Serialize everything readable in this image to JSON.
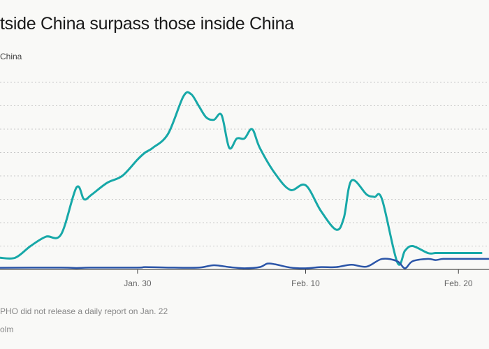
{
  "chart_data": {
    "type": "line",
    "title": "tside China surpass those inside China",
    "legend_label": "China",
    "x_ticks": [
      {
        "label": "Jan. 30",
        "x": 11
      },
      {
        "label": "Feb. 10",
        "x": 22
      },
      {
        "label": "Feb. 20",
        "x": 32
      }
    ],
    "x_range": [
      2,
      34
    ],
    "y_range": [
      0,
      8
    ],
    "grid": true,
    "series": [
      {
        "color": "#17a8a8",
        "x": [
          2,
          3,
          4,
          5,
          6,
          7,
          7.5,
          8,
          9,
          10,
          11,
          11.5,
          12,
          13,
          14,
          14.5,
          15,
          15.5,
          16,
          16.5,
          17,
          17.5,
          18,
          18.5,
          19,
          20,
          21,
          22,
          23,
          24,
          24.5,
          25,
          26,
          26.5,
          27,
          28,
          28.5,
          29,
          30,
          30.5,
          31,
          31.3,
          32,
          33,
          33.5
        ],
        "y": [
          0.5,
          0.5,
          1.0,
          1.4,
          1.5,
          3.5,
          3.0,
          3.2,
          3.7,
          4.0,
          4.7,
          5.0,
          5.2,
          5.8,
          7.4,
          7.5,
          7.0,
          6.5,
          6.4,
          6.6,
          5.2,
          5.6,
          5.6,
          6.0,
          5.2,
          4.1,
          3.4,
          3.6,
          2.5,
          1.7,
          2.2,
          3.8,
          3.2,
          3.1,
          3.0,
          0.3,
          0.8,
          1.0,
          0.7,
          0.7,
          0.7,
          0.7,
          0.7,
          0.7,
          0.7
        ]
      },
      {
        "color": "#2b55a8",
        "x": [
          2,
          6,
          7,
          8,
          11,
          11.5,
          13,
          15,
          16,
          17,
          18,
          19,
          19.5,
          20,
          21,
          22,
          23,
          24,
          25,
          26,
          27,
          28,
          28.5,
          29,
          30,
          30.5,
          31,
          32,
          33,
          34
        ],
        "y": [
          0.07,
          0.08,
          0.06,
          0.08,
          0.08,
          0.1,
          0.08,
          0.08,
          0.18,
          0.1,
          0.05,
          0.1,
          0.25,
          0.22,
          0.08,
          0.05,
          0.1,
          0.1,
          0.2,
          0.12,
          0.45,
          0.35,
          0.05,
          0.35,
          0.45,
          0.4,
          0.45,
          0.45,
          0.45,
          0.45
        ]
      }
    ]
  },
  "footer": {
    "note": "PHO did not release a daily report on Jan. 22",
    "source": "olm"
  }
}
